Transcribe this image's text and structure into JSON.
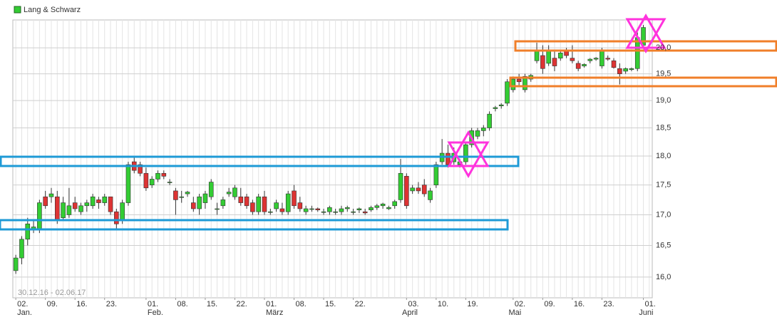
{
  "chart_data": {
    "type": "candlestick",
    "legend_position": "top-left",
    "log_scale": true,
    "grid": true,
    "range_label": "30.12.16 - 02.06.17",
    "up_color": "#33cc33",
    "down_color": "#dd3333",
    "categories": [
      "02.",
      null,
      null,
      null,
      null,
      "09.",
      null,
      null,
      null,
      null,
      "16.",
      null,
      null,
      null,
      null,
      "23.",
      null,
      null,
      null,
      null,
      null,
      null,
      "01.",
      null,
      null,
      null,
      null,
      "08.",
      null,
      null,
      null,
      null,
      "15.",
      null,
      null,
      null,
      null,
      "22.",
      null,
      null,
      null,
      null,
      "01.",
      null,
      null,
      null,
      null,
      "08.",
      null,
      null,
      null,
      null,
      "15.",
      null,
      null,
      null,
      null,
      "22.",
      null,
      null,
      null,
      null,
      null,
      null,
      null,
      null,
      "03.",
      null,
      null,
      null,
      null,
      "10.",
      null,
      null,
      null,
      null,
      "19.",
      null,
      null,
      null,
      null,
      null,
      null,
      null,
      "02.",
      null,
      null,
      null,
      null,
      "09.",
      null,
      null,
      null,
      null,
      "16.",
      null,
      null,
      null,
      null,
      "23.",
      null,
      null,
      null,
      null,
      null,
      null,
      "01.",
      null
    ],
    "months": [
      "Jan.",
      null,
      null,
      null,
      null,
      null,
      null,
      null,
      null,
      null,
      null,
      null,
      null,
      null,
      null,
      null,
      null,
      null,
      null,
      null,
      null,
      null,
      "Feb.",
      null,
      null,
      null,
      null,
      null,
      null,
      null,
      null,
      null,
      null,
      null,
      null,
      null,
      null,
      null,
      null,
      null,
      null,
      null,
      "März",
      null,
      null,
      null,
      null,
      null,
      null,
      null,
      null,
      null,
      null,
      null,
      null,
      null,
      null,
      null,
      null,
      null,
      null,
      null,
      null,
      null,
      null,
      "April",
      null,
      null,
      null,
      null,
      null,
      null,
      null,
      null,
      null,
      null,
      null,
      null,
      null,
      null,
      null,
      null,
      null,
      "Mai",
      null,
      null,
      null,
      null,
      null,
      null,
      null,
      null,
      null,
      null,
      null,
      null,
      null,
      null,
      null,
      null,
      null,
      null,
      null,
      null,
      null,
      "Juni",
      null
    ],
    "series": [
      {
        "name": "Lang & Schwarz",
        "color": "#33cc33",
        "open": [
          16.1,
          16.3,
          16.6,
          16.75,
          16.75,
          17.3,
          17.3,
          17.3,
          16.95,
          17.0,
          17.2,
          17.05,
          17.15,
          17.15,
          17.25,
          17.2,
          17.3,
          17.05,
          16.9,
          17.2,
          17.9,
          17.85,
          17.7,
          17.5,
          17.6,
          17.7,
          17.55,
          17.4,
          17.3,
          17.35,
          17.2,
          17.1,
          17.2,
          17.3,
          17.1,
          17.15,
          17.35,
          17.3,
          17.3,
          17.3,
          17.2,
          17.05,
          17.3,
          17.05,
          17.1,
          17.1,
          17.05,
          17.4,
          17.2,
          17.05,
          17.1,
          17.1,
          17.05,
          17.05,
          17.05,
          17.05,
          17.1,
          17.05,
          17.08,
          17.05,
          17.08,
          17.12,
          17.15,
          17.1,
          17.15,
          17.25,
          17.65,
          17.4,
          17.45,
          17.5,
          17.25,
          17.5,
          17.9,
          18.05,
          17.9,
          17.85,
          17.9,
          18.2,
          18.35,
          18.45,
          18.5,
          18.85,
          18.9,
          18.95,
          19.2,
          19.4,
          19.2,
          19.4,
          19.75,
          19.85,
          19.7,
          19.8,
          19.8,
          19.95,
          19.8,
          19.7,
          19.65,
          19.75,
          19.78,
          19.65,
          19.8,
          19.75,
          19.6,
          19.55,
          19.58,
          19.6,
          20.05
        ],
        "high": [
          16.35,
          16.65,
          16.95,
          16.9,
          17.25,
          17.4,
          17.45,
          17.4,
          17.3,
          17.45,
          17.3,
          17.2,
          17.25,
          17.35,
          17.3,
          17.35,
          17.3,
          17.1,
          17.25,
          17.9,
          18.0,
          17.9,
          17.8,
          17.65,
          17.75,
          17.75,
          17.6,
          17.45,
          17.4,
          17.4,
          17.3,
          17.35,
          17.4,
          17.6,
          17.2,
          17.3,
          17.45,
          17.5,
          17.45,
          17.35,
          17.25,
          17.35,
          17.4,
          17.1,
          17.25,
          17.2,
          17.4,
          17.5,
          17.3,
          17.15,
          17.15,
          17.12,
          17.1,
          17.15,
          17.1,
          17.15,
          17.15,
          17.1,
          17.12,
          17.1,
          17.15,
          17.18,
          17.2,
          17.15,
          17.25,
          17.95,
          17.7,
          17.5,
          17.55,
          17.6,
          17.45,
          17.9,
          18.3,
          18.2,
          18.15,
          17.95,
          18.25,
          18.5,
          18.5,
          18.55,
          18.8,
          18.9,
          18.95,
          19.4,
          19.45,
          19.5,
          19.5,
          19.5,
          20.1,
          20.05,
          20.05,
          19.95,
          19.95,
          20.0,
          20.05,
          19.75,
          19.7,
          19.8,
          19.82,
          20.0,
          19.85,
          19.8,
          19.7,
          19.62,
          19.62,
          20.3,
          20.45
        ],
        "low": [
          16.05,
          16.2,
          16.5,
          16.7,
          16.7,
          17.1,
          17.2,
          16.85,
          16.9,
          16.95,
          17.05,
          17.0,
          17.05,
          17.1,
          17.1,
          17.15,
          17.0,
          16.75,
          16.85,
          17.15,
          17.7,
          17.65,
          17.4,
          17.45,
          17.55,
          17.6,
          17.5,
          17.0,
          17.2,
          17.3,
          17.05,
          17.0,
          17.1,
          17.25,
          17.0,
          17.1,
          17.3,
          17.25,
          17.15,
          17.1,
          17.0,
          17.0,
          17.0,
          17.0,
          17.05,
          17.0,
          17.0,
          17.1,
          17.05,
          17.0,
          17.05,
          17.05,
          17.0,
          17.0,
          17.0,
          17.0,
          17.05,
          17.0,
          17.03,
          17.0,
          17.05,
          17.08,
          17.1,
          17.08,
          17.1,
          17.2,
          17.1,
          17.35,
          17.35,
          17.3,
          17.2,
          17.45,
          17.85,
          17.8,
          17.85,
          17.8,
          17.85,
          18.15,
          18.3,
          18.35,
          18.45,
          18.8,
          18.85,
          18.9,
          19.15,
          19.25,
          19.15,
          19.35,
          19.7,
          19.5,
          19.65,
          19.55,
          19.75,
          19.8,
          19.7,
          19.55,
          19.62,
          19.7,
          19.75,
          19.6,
          19.75,
          19.6,
          19.3,
          19.5,
          19.55,
          19.55,
          20.0
        ],
        "close": [
          16.3,
          16.6,
          16.85,
          16.8,
          17.2,
          17.15,
          17.35,
          16.9,
          17.2,
          17.15,
          17.1,
          17.15,
          17.2,
          17.3,
          17.2,
          17.3,
          17.05,
          16.85,
          17.2,
          17.85,
          17.75,
          17.7,
          17.45,
          17.6,
          17.7,
          17.65,
          17.55,
          17.25,
          17.3,
          17.38,
          17.1,
          17.3,
          17.35,
          17.55,
          17.1,
          17.25,
          17.38,
          17.45,
          17.2,
          17.15,
          17.05,
          17.3,
          17.05,
          17.05,
          17.2,
          17.05,
          17.35,
          17.15,
          17.1,
          17.1,
          17.1,
          17.08,
          17.05,
          17.12,
          17.05,
          17.1,
          17.12,
          17.05,
          17.1,
          17.03,
          17.12,
          17.15,
          17.18,
          17.12,
          17.22,
          17.7,
          17.15,
          17.45,
          17.4,
          17.35,
          17.4,
          17.85,
          18.05,
          17.85,
          18.05,
          17.9,
          18.2,
          18.45,
          18.45,
          18.5,
          18.75,
          18.87,
          18.92,
          19.35,
          19.4,
          19.35,
          19.45,
          19.47,
          19.95,
          19.6,
          19.95,
          19.65,
          19.9,
          19.85,
          19.75,
          19.6,
          19.68,
          19.78,
          19.8,
          19.95,
          19.78,
          19.62,
          19.5,
          19.6,
          19.6,
          20.2,
          20.4
        ]
      }
    ],
    "ylim": [
      15.68,
      20.55
    ],
    "yticks": [
      {
        "value": 16,
        "label": "16,0"
      },
      {
        "value": 16.5,
        "label": "16,5"
      },
      {
        "value": 17,
        "label": "17,0"
      },
      {
        "value": 17.5,
        "label": "17,5"
      },
      {
        "value": 18,
        "label": "18,0"
      },
      {
        "value": 18.5,
        "label": "18,5"
      },
      {
        "value": 19,
        "label": "19,0"
      },
      {
        "value": 19.5,
        "label": "19,5"
      },
      {
        "value": 20,
        "label": "20,0"
      }
    ]
  }
}
